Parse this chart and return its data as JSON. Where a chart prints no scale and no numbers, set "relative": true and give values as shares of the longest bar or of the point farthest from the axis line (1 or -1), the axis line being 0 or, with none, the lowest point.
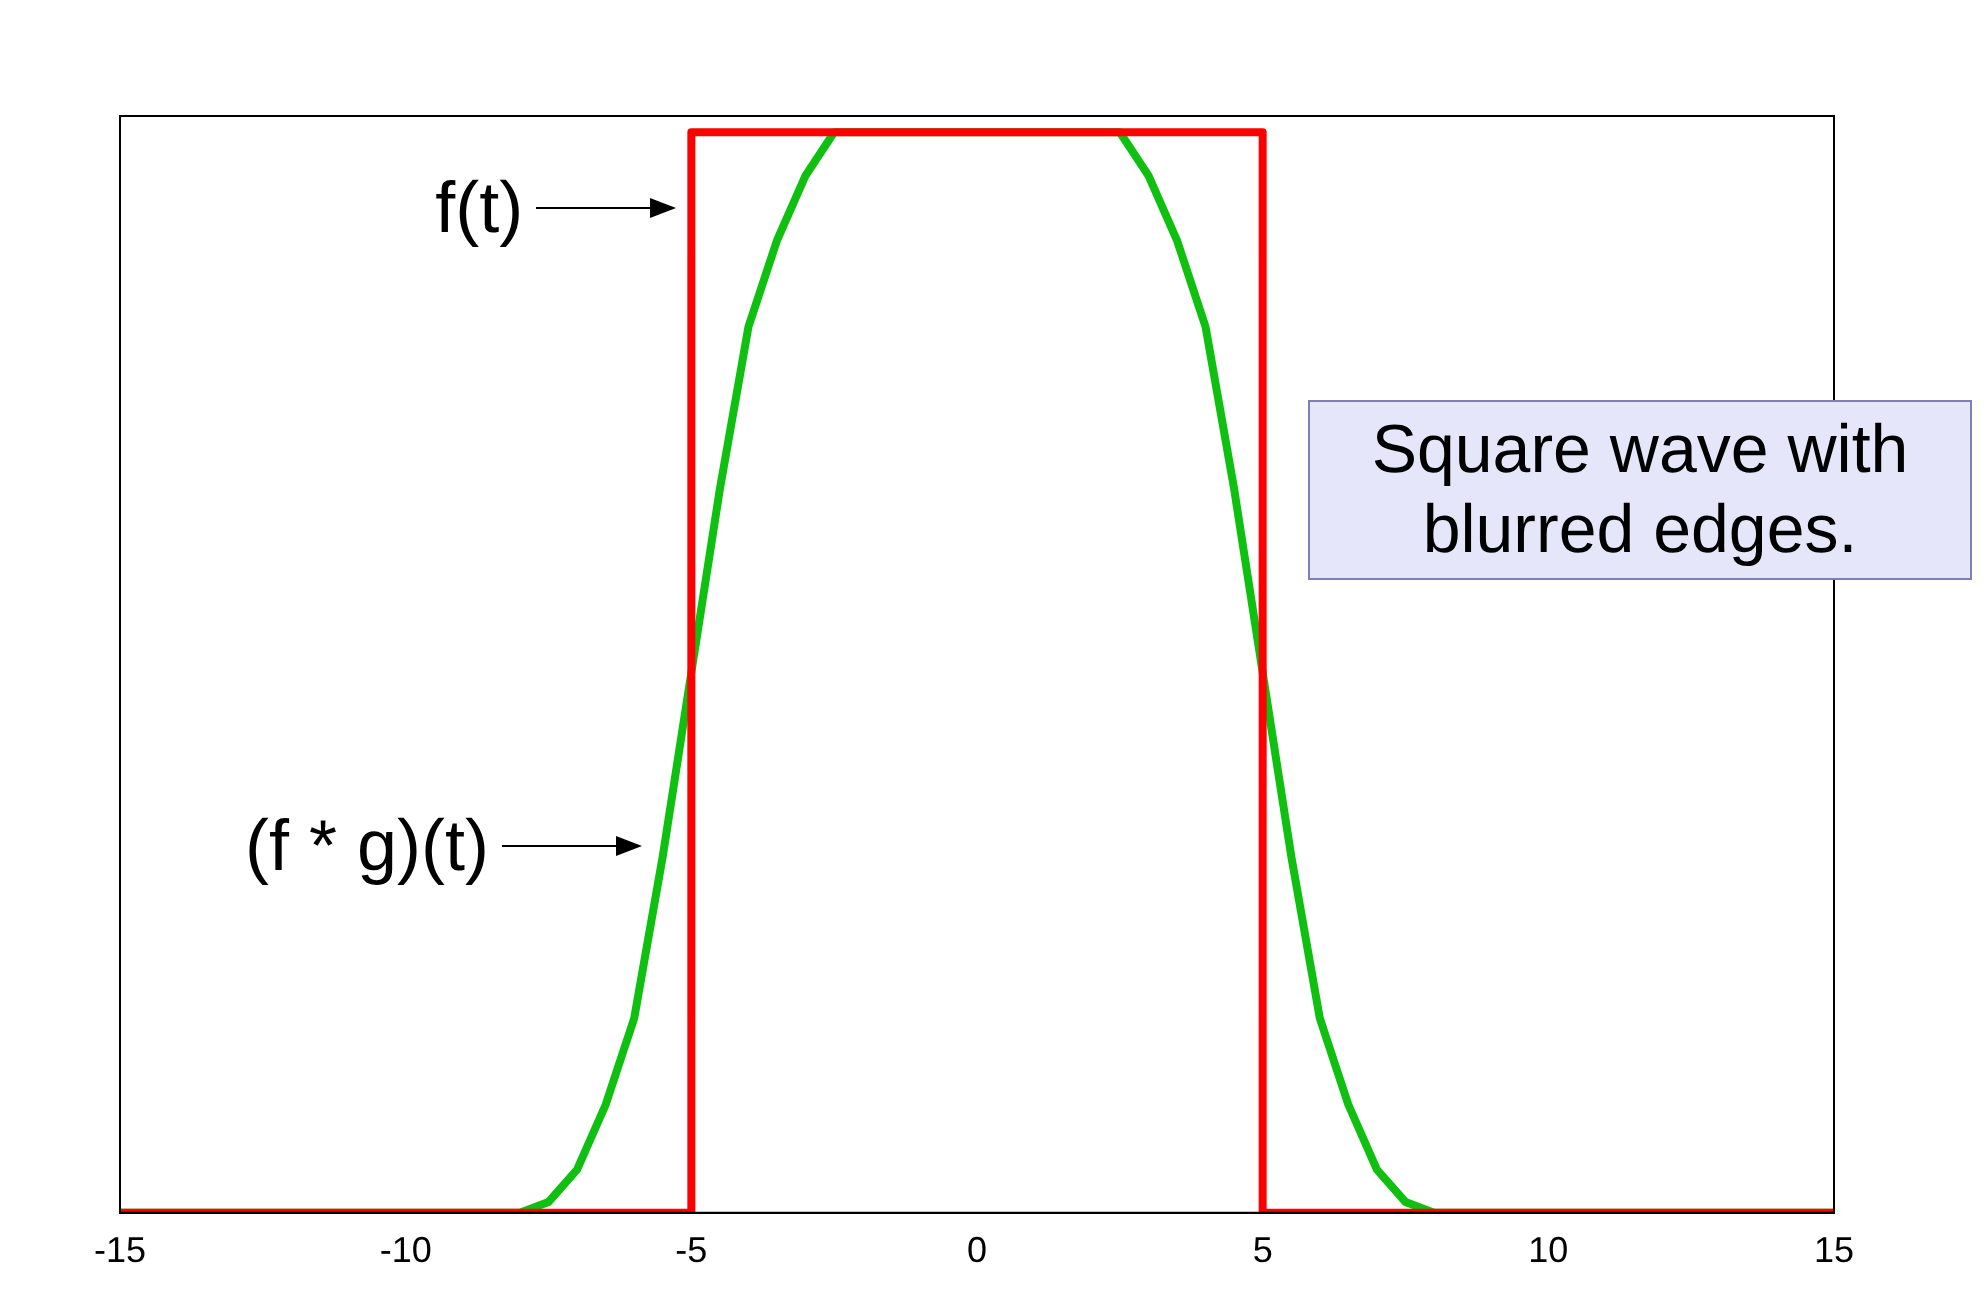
{
  "chart_data": {
    "type": "line",
    "relative": true,
    "xlim": [
      -15,
      15
    ],
    "xticks": [
      -15,
      -10,
      -5,
      0,
      5,
      10,
      15
    ],
    "tick_labels": "x",
    "grid": false,
    "legend": false,
    "marker": "none",
    "line_style": "solid",
    "series": [
      {
        "color": "#ff0000",
        "x": [
          -15,
          -5,
          -5,
          5,
          5,
          15
        ],
        "values": [
          0,
          0,
          1,
          1,
          0,
          0
        ]
      },
      {
        "color": "#10c010",
        "x": [
          -15,
          -8,
          -7.5,
          -7,
          -6.5,
          -6,
          -5.5,
          -5,
          -4.5,
          -4,
          -3.5,
          -3,
          -2.5,
          2.5,
          3,
          3.5,
          4,
          4.5,
          5,
          5.5,
          6,
          6.5,
          7,
          7.5,
          8,
          15
        ],
        "values": [
          0,
          0,
          0.01,
          0.04,
          0.1,
          0.18,
          0.33,
          0.5,
          0.67,
          0.82,
          0.9,
          0.96,
          1,
          1,
          0.96,
          0.9,
          0.82,
          0.67,
          0.5,
          0.33,
          0.18,
          0.1,
          0.04,
          0.01,
          0,
          0
        ]
      }
    ],
    "annotations": [
      {
        "text": "f(t)",
        "x": -5,
        "y": 0.93
      },
      {
        "text": "(f * g)(t)",
        "x": -5.6,
        "y": 0.34
      },
      "Square wave with blurred edges."
    ]
  }
}
